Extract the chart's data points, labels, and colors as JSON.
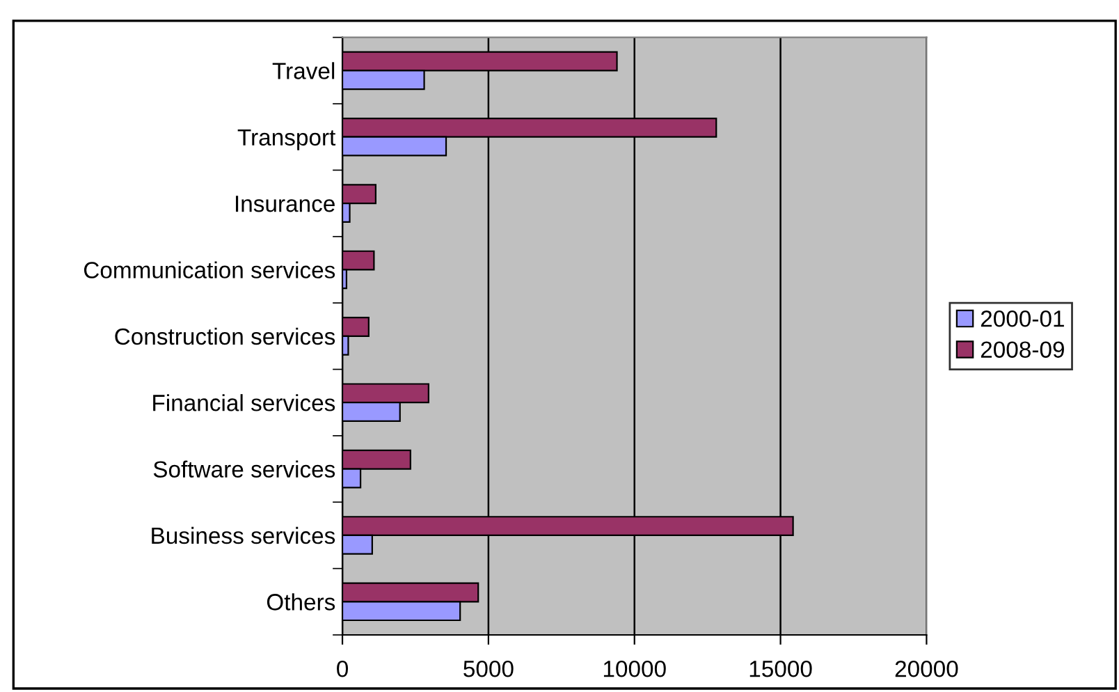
{
  "chart_data": {
    "type": "bar",
    "orientation": "horizontal",
    "categories": [
      "Travel",
      "Transport",
      "Insurance",
      "Communication services",
      "Construction services",
      "Financial services",
      "Software services",
      "Business services",
      "Others"
    ],
    "series": [
      {
        "name": "2008-09",
        "color": "#993366",
        "values": [
          9400,
          12800,
          1140,
          1080,
          900,
          2950,
          2330,
          15430,
          4650
        ]
      },
      {
        "name": "2000-01",
        "color": "#9999ff",
        "values": [
          2800,
          3550,
          250,
          140,
          200,
          1970,
          620,
          1020,
          4030
        ]
      }
    ],
    "xlim": [
      0,
      20000
    ],
    "xticks": [
      0,
      5000,
      10000,
      15000,
      20000
    ],
    "grid": "x",
    "legend": "right"
  }
}
